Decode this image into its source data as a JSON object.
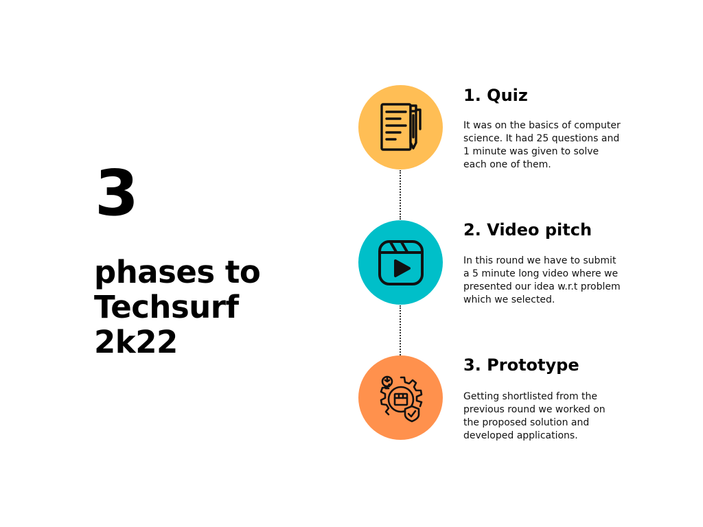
{
  "hero": {
    "number": "3",
    "lines": [
      "phases to",
      "Techsurf",
      "2k22"
    ]
  },
  "phases": [
    {
      "title": "1. Quiz",
      "description": "It was on the basics of computer science. It had 25 questions and 1 minute was given to solve each one of them.",
      "icon": "quiz-document-pen-icon",
      "color": "#FFBE55"
    },
    {
      "title": "2. Video pitch",
      "description": "In this round we have to submit a 5 minute long video where we presented our idea w.r.t problem which we selected.",
      "icon": "video-play-icon",
      "color": "#00BFC9"
    },
    {
      "title": "3. Prototype",
      "description": "Getting shortlisted from the previous round we worked on the proposed solution and developed applications.",
      "icon": "prototype-gear-box-icon",
      "color": "#FF914D"
    }
  ]
}
